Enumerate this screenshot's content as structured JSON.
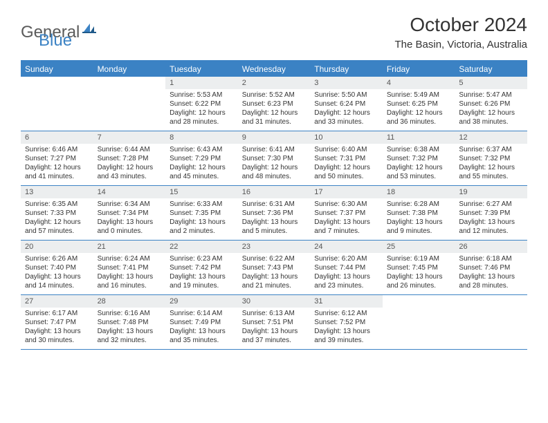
{
  "logo": {
    "part1": "General",
    "part2": "Blue"
  },
  "title": "October 2024",
  "location": "The Basin, Victoria, Australia",
  "colors": {
    "accent": "#3b82c4",
    "dayHeaderBg": "#eceeef",
    "text": "#333333",
    "logoGray": "#5a5a5a"
  },
  "dow": [
    "Sunday",
    "Monday",
    "Tuesday",
    "Wednesday",
    "Thursday",
    "Friday",
    "Saturday"
  ],
  "weeks": [
    [
      null,
      null,
      {
        "n": "1",
        "sr": "Sunrise: 5:53 AM",
        "ss": "Sunset: 6:22 PM",
        "dl": "Daylight: 12 hours and 28 minutes."
      },
      {
        "n": "2",
        "sr": "Sunrise: 5:52 AM",
        "ss": "Sunset: 6:23 PM",
        "dl": "Daylight: 12 hours and 31 minutes."
      },
      {
        "n": "3",
        "sr": "Sunrise: 5:50 AM",
        "ss": "Sunset: 6:24 PM",
        "dl": "Daylight: 12 hours and 33 minutes."
      },
      {
        "n": "4",
        "sr": "Sunrise: 5:49 AM",
        "ss": "Sunset: 6:25 PM",
        "dl": "Daylight: 12 hours and 36 minutes."
      },
      {
        "n": "5",
        "sr": "Sunrise: 5:47 AM",
        "ss": "Sunset: 6:26 PM",
        "dl": "Daylight: 12 hours and 38 minutes."
      }
    ],
    [
      {
        "n": "6",
        "sr": "Sunrise: 6:46 AM",
        "ss": "Sunset: 7:27 PM",
        "dl": "Daylight: 12 hours and 41 minutes."
      },
      {
        "n": "7",
        "sr": "Sunrise: 6:44 AM",
        "ss": "Sunset: 7:28 PM",
        "dl": "Daylight: 12 hours and 43 minutes."
      },
      {
        "n": "8",
        "sr": "Sunrise: 6:43 AM",
        "ss": "Sunset: 7:29 PM",
        "dl": "Daylight: 12 hours and 45 minutes."
      },
      {
        "n": "9",
        "sr": "Sunrise: 6:41 AM",
        "ss": "Sunset: 7:30 PM",
        "dl": "Daylight: 12 hours and 48 minutes."
      },
      {
        "n": "10",
        "sr": "Sunrise: 6:40 AM",
        "ss": "Sunset: 7:31 PM",
        "dl": "Daylight: 12 hours and 50 minutes."
      },
      {
        "n": "11",
        "sr": "Sunrise: 6:38 AM",
        "ss": "Sunset: 7:32 PM",
        "dl": "Daylight: 12 hours and 53 minutes."
      },
      {
        "n": "12",
        "sr": "Sunrise: 6:37 AM",
        "ss": "Sunset: 7:32 PM",
        "dl": "Daylight: 12 hours and 55 minutes."
      }
    ],
    [
      {
        "n": "13",
        "sr": "Sunrise: 6:35 AM",
        "ss": "Sunset: 7:33 PM",
        "dl": "Daylight: 12 hours and 57 minutes."
      },
      {
        "n": "14",
        "sr": "Sunrise: 6:34 AM",
        "ss": "Sunset: 7:34 PM",
        "dl": "Daylight: 13 hours and 0 minutes."
      },
      {
        "n": "15",
        "sr": "Sunrise: 6:33 AM",
        "ss": "Sunset: 7:35 PM",
        "dl": "Daylight: 13 hours and 2 minutes."
      },
      {
        "n": "16",
        "sr": "Sunrise: 6:31 AM",
        "ss": "Sunset: 7:36 PM",
        "dl": "Daylight: 13 hours and 5 minutes."
      },
      {
        "n": "17",
        "sr": "Sunrise: 6:30 AM",
        "ss": "Sunset: 7:37 PM",
        "dl": "Daylight: 13 hours and 7 minutes."
      },
      {
        "n": "18",
        "sr": "Sunrise: 6:28 AM",
        "ss": "Sunset: 7:38 PM",
        "dl": "Daylight: 13 hours and 9 minutes."
      },
      {
        "n": "19",
        "sr": "Sunrise: 6:27 AM",
        "ss": "Sunset: 7:39 PM",
        "dl": "Daylight: 13 hours and 12 minutes."
      }
    ],
    [
      {
        "n": "20",
        "sr": "Sunrise: 6:26 AM",
        "ss": "Sunset: 7:40 PM",
        "dl": "Daylight: 13 hours and 14 minutes."
      },
      {
        "n": "21",
        "sr": "Sunrise: 6:24 AM",
        "ss": "Sunset: 7:41 PM",
        "dl": "Daylight: 13 hours and 16 minutes."
      },
      {
        "n": "22",
        "sr": "Sunrise: 6:23 AM",
        "ss": "Sunset: 7:42 PM",
        "dl": "Daylight: 13 hours and 19 minutes."
      },
      {
        "n": "23",
        "sr": "Sunrise: 6:22 AM",
        "ss": "Sunset: 7:43 PM",
        "dl": "Daylight: 13 hours and 21 minutes."
      },
      {
        "n": "24",
        "sr": "Sunrise: 6:20 AM",
        "ss": "Sunset: 7:44 PM",
        "dl": "Daylight: 13 hours and 23 minutes."
      },
      {
        "n": "25",
        "sr": "Sunrise: 6:19 AM",
        "ss": "Sunset: 7:45 PM",
        "dl": "Daylight: 13 hours and 26 minutes."
      },
      {
        "n": "26",
        "sr": "Sunrise: 6:18 AM",
        "ss": "Sunset: 7:46 PM",
        "dl": "Daylight: 13 hours and 28 minutes."
      }
    ],
    [
      {
        "n": "27",
        "sr": "Sunrise: 6:17 AM",
        "ss": "Sunset: 7:47 PM",
        "dl": "Daylight: 13 hours and 30 minutes."
      },
      {
        "n": "28",
        "sr": "Sunrise: 6:16 AM",
        "ss": "Sunset: 7:48 PM",
        "dl": "Daylight: 13 hours and 32 minutes."
      },
      {
        "n": "29",
        "sr": "Sunrise: 6:14 AM",
        "ss": "Sunset: 7:49 PM",
        "dl": "Daylight: 13 hours and 35 minutes."
      },
      {
        "n": "30",
        "sr": "Sunrise: 6:13 AM",
        "ss": "Sunset: 7:51 PM",
        "dl": "Daylight: 13 hours and 37 minutes."
      },
      {
        "n": "31",
        "sr": "Sunrise: 6:12 AM",
        "ss": "Sunset: 7:52 PM",
        "dl": "Daylight: 13 hours and 39 minutes."
      },
      null,
      null
    ]
  ]
}
